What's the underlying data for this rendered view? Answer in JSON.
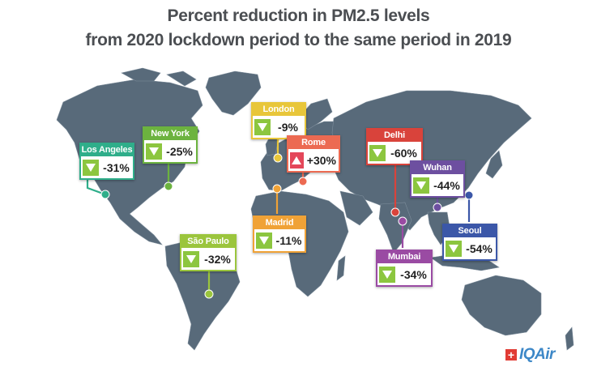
{
  "title": {
    "line1": "Percent reduction in PM2.5 levels",
    "line2": "from 2020 lockdown period to the same period in 2019"
  },
  "cities": [
    {
      "name": "Los Angeles",
      "value": "-31%",
      "direction": "down",
      "color": "#2fae8a"
    },
    {
      "name": "New York",
      "value": "-25%",
      "direction": "down",
      "color": "#6cb33f"
    },
    {
      "name": "London",
      "value": "-9%",
      "direction": "down",
      "color": "#e8c63a"
    },
    {
      "name": "Rome",
      "value": "+30%",
      "direction": "up",
      "color": "#ec6a52"
    },
    {
      "name": "Madrid",
      "value": "-11%",
      "direction": "down",
      "color": "#f0a236"
    },
    {
      "name": "São Paulo",
      "value": "-32%",
      "direction": "down",
      "color": "#9bc53d"
    },
    {
      "name": "Delhi",
      "value": "-60%",
      "direction": "down",
      "color": "#d9433b"
    },
    {
      "name": "Wuhan",
      "value": "-44%",
      "direction": "down",
      "color": "#6d4fa0"
    },
    {
      "name": "Mumbai",
      "value": "-34%",
      "direction": "down",
      "color": "#9a4ba3"
    },
    {
      "name": "Seoul",
      "value": "-54%",
      "direction": "down",
      "color": "#3b57a8"
    }
  ],
  "colors": {
    "map": "#586a7a",
    "down_arrow": "#8cc63f",
    "up_arrow": "#e4475a"
  },
  "logo": {
    "text": "IQAir",
    "mark": "+"
  }
}
